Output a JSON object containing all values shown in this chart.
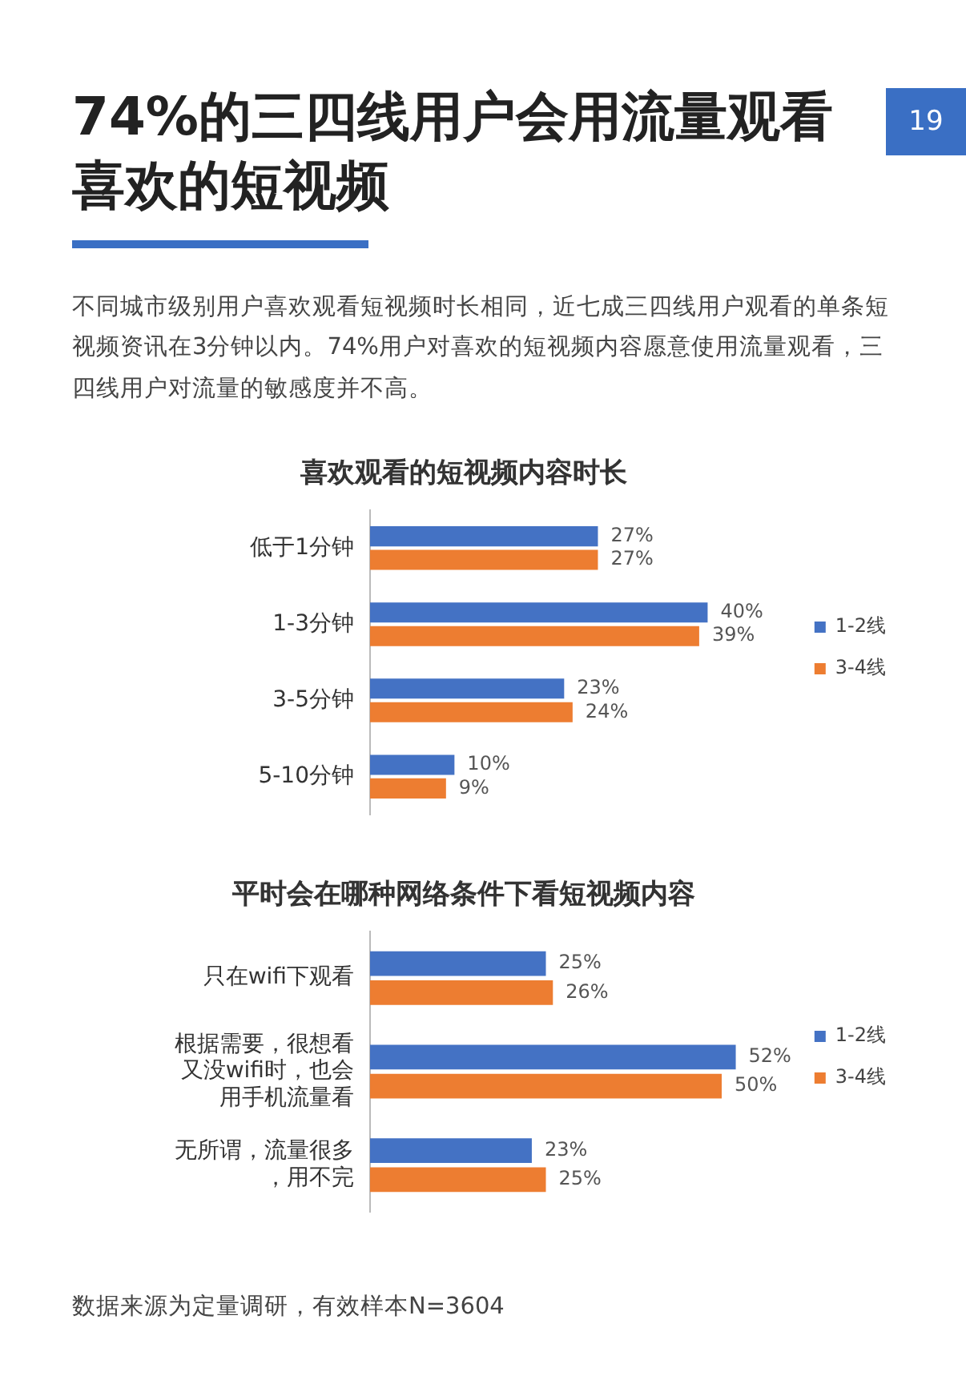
{
  "chart_data": [
    {
      "type": "bar",
      "orientation": "horizontal",
      "title": "喜欢观看的短视频内容时长",
      "categories": [
        "低于1分钟",
        "1-3分钟",
        "3-5分钟",
        "5-10分钟"
      ],
      "series": [
        {
          "name": "1-2线",
          "color": "#4472c4",
          "values": [
            27,
            40,
            23,
            10
          ],
          "value_labels": [
            "27%",
            "40%",
            "23%",
            "10%"
          ]
        },
        {
          "name": "3-4线",
          "color": "#ed7d31",
          "values": [
            27,
            39,
            24,
            9
          ],
          "value_labels": [
            "27%",
            "39%",
            "24%",
            "9%"
          ]
        }
      ],
      "legend": "right",
      "grid": false,
      "annotations": [
        "74%的三四线用户会用流量观看喜欢的短视频",
        "19",
        "不同城市级别用户喜欢观看短视频时长相同，近七成三四线用户观看的单条短视频资讯在3分钟以内。74%用户对喜欢的短视频内容愿意使用流量观看，三四线用户对流量的敏感度并不高。"
      ]
    },
    {
      "type": "bar",
      "orientation": "horizontal",
      "title": "平时会在哪种网络条件下看短视频内容",
      "categories": [
        "只在wifi下观看",
        "根据需要，很想看又没wifi时，也会用手机流量看",
        "无所谓，流量很多，用不完"
      ],
      "series": [
        {
          "name": "1-2线",
          "color": "#4472c4",
          "values": [
            25,
            52,
            23
          ],
          "value_labels": [
            "25%",
            "52%",
            "23%"
          ]
        },
        {
          "name": "3-4线",
          "color": "#ed7d31",
          "values": [
            26,
            50,
            25
          ],
          "value_labels": [
            "26%",
            "50%",
            "25%"
          ]
        }
      ],
      "legend": "right",
      "grid": false,
      "annotations": [
        "数据来源为定量调研，有效样本N=3604"
      ]
    }
  ]
}
